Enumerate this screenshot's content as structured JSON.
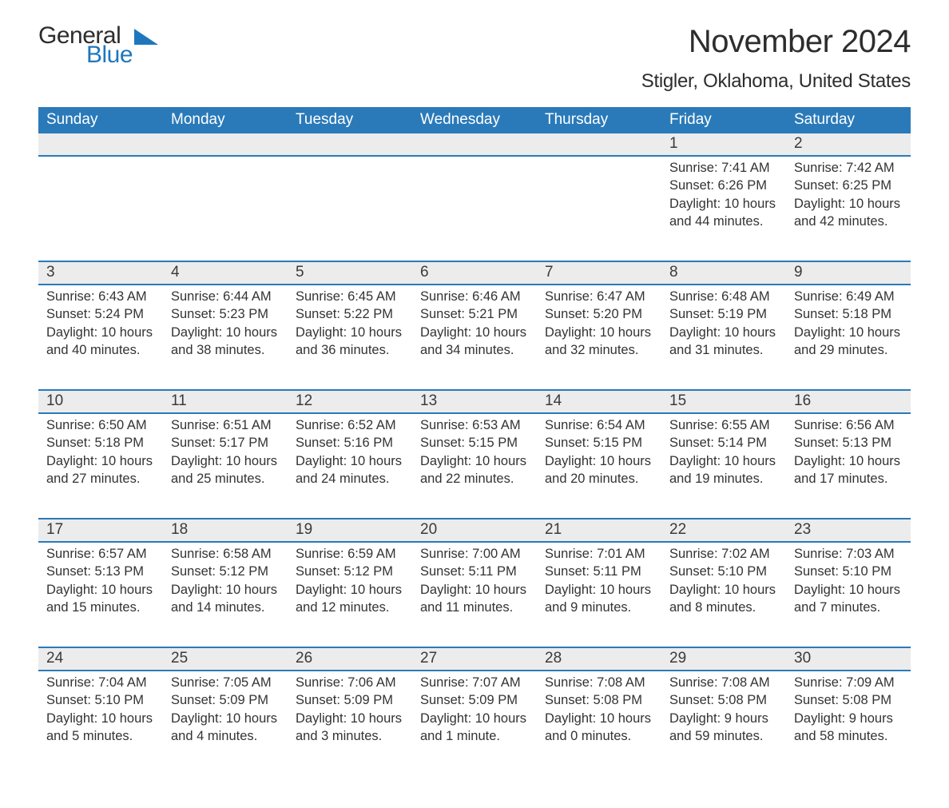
{
  "brand": {
    "word1": "General",
    "word2": "Blue",
    "triangle_color": "#1e77bd"
  },
  "title": "November 2024",
  "location": "Stigler, Oklahoma, United States",
  "colors": {
    "header_bg": "#2a7ab9",
    "header_text": "#ffffff",
    "daynum_bg": "#ececec",
    "row_border": "#2a7ab9",
    "text": "#333333",
    "logo_blue": "#1e77bd"
  },
  "day_headers": [
    "Sunday",
    "Monday",
    "Tuesday",
    "Wednesday",
    "Thursday",
    "Friday",
    "Saturday"
  ],
  "weeks": [
    {
      "days": [
        null,
        null,
        null,
        null,
        null,
        {
          "n": "1",
          "sr": "Sunrise: 7:41 AM",
          "ss": "Sunset: 6:26 PM",
          "dl": "Daylight: 10 hours and 44 minutes."
        },
        {
          "n": "2",
          "sr": "Sunrise: 7:42 AM",
          "ss": "Sunset: 6:25 PM",
          "dl": "Daylight: 10 hours and 42 minutes."
        }
      ]
    },
    {
      "days": [
        {
          "n": "3",
          "sr": "Sunrise: 6:43 AM",
          "ss": "Sunset: 5:24 PM",
          "dl": "Daylight: 10 hours and 40 minutes."
        },
        {
          "n": "4",
          "sr": "Sunrise: 6:44 AM",
          "ss": "Sunset: 5:23 PM",
          "dl": "Daylight: 10 hours and 38 minutes."
        },
        {
          "n": "5",
          "sr": "Sunrise: 6:45 AM",
          "ss": "Sunset: 5:22 PM",
          "dl": "Daylight: 10 hours and 36 minutes."
        },
        {
          "n": "6",
          "sr": "Sunrise: 6:46 AM",
          "ss": "Sunset: 5:21 PM",
          "dl": "Daylight: 10 hours and 34 minutes."
        },
        {
          "n": "7",
          "sr": "Sunrise: 6:47 AM",
          "ss": "Sunset: 5:20 PM",
          "dl": "Daylight: 10 hours and 32 minutes."
        },
        {
          "n": "8",
          "sr": "Sunrise: 6:48 AM",
          "ss": "Sunset: 5:19 PM",
          "dl": "Daylight: 10 hours and 31 minutes."
        },
        {
          "n": "9",
          "sr": "Sunrise: 6:49 AM",
          "ss": "Sunset: 5:18 PM",
          "dl": "Daylight: 10 hours and 29 minutes."
        }
      ]
    },
    {
      "days": [
        {
          "n": "10",
          "sr": "Sunrise: 6:50 AM",
          "ss": "Sunset: 5:18 PM",
          "dl": "Daylight: 10 hours and 27 minutes."
        },
        {
          "n": "11",
          "sr": "Sunrise: 6:51 AM",
          "ss": "Sunset: 5:17 PM",
          "dl": "Daylight: 10 hours and 25 minutes."
        },
        {
          "n": "12",
          "sr": "Sunrise: 6:52 AM",
          "ss": "Sunset: 5:16 PM",
          "dl": "Daylight: 10 hours and 24 minutes."
        },
        {
          "n": "13",
          "sr": "Sunrise: 6:53 AM",
          "ss": "Sunset: 5:15 PM",
          "dl": "Daylight: 10 hours and 22 minutes."
        },
        {
          "n": "14",
          "sr": "Sunrise: 6:54 AM",
          "ss": "Sunset: 5:15 PM",
          "dl": "Daylight: 10 hours and 20 minutes."
        },
        {
          "n": "15",
          "sr": "Sunrise: 6:55 AM",
          "ss": "Sunset: 5:14 PM",
          "dl": "Daylight: 10 hours and 19 minutes."
        },
        {
          "n": "16",
          "sr": "Sunrise: 6:56 AM",
          "ss": "Sunset: 5:13 PM",
          "dl": "Daylight: 10 hours and 17 minutes."
        }
      ]
    },
    {
      "days": [
        {
          "n": "17",
          "sr": "Sunrise: 6:57 AM",
          "ss": "Sunset: 5:13 PM",
          "dl": "Daylight: 10 hours and 15 minutes."
        },
        {
          "n": "18",
          "sr": "Sunrise: 6:58 AM",
          "ss": "Sunset: 5:12 PM",
          "dl": "Daylight: 10 hours and 14 minutes."
        },
        {
          "n": "19",
          "sr": "Sunrise: 6:59 AM",
          "ss": "Sunset: 5:12 PM",
          "dl": "Daylight: 10 hours and 12 minutes."
        },
        {
          "n": "20",
          "sr": "Sunrise: 7:00 AM",
          "ss": "Sunset: 5:11 PM",
          "dl": "Daylight: 10 hours and 11 minutes."
        },
        {
          "n": "21",
          "sr": "Sunrise: 7:01 AM",
          "ss": "Sunset: 5:11 PM",
          "dl": "Daylight: 10 hours and 9 minutes."
        },
        {
          "n": "22",
          "sr": "Sunrise: 7:02 AM",
          "ss": "Sunset: 5:10 PM",
          "dl": "Daylight: 10 hours and 8 minutes."
        },
        {
          "n": "23",
          "sr": "Sunrise: 7:03 AM",
          "ss": "Sunset: 5:10 PM",
          "dl": "Daylight: 10 hours and 7 minutes."
        }
      ]
    },
    {
      "days": [
        {
          "n": "24",
          "sr": "Sunrise: 7:04 AM",
          "ss": "Sunset: 5:10 PM",
          "dl": "Daylight: 10 hours and 5 minutes."
        },
        {
          "n": "25",
          "sr": "Sunrise: 7:05 AM",
          "ss": "Sunset: 5:09 PM",
          "dl": "Daylight: 10 hours and 4 minutes."
        },
        {
          "n": "26",
          "sr": "Sunrise: 7:06 AM",
          "ss": "Sunset: 5:09 PM",
          "dl": "Daylight: 10 hours and 3 minutes."
        },
        {
          "n": "27",
          "sr": "Sunrise: 7:07 AM",
          "ss": "Sunset: 5:09 PM",
          "dl": "Daylight: 10 hours and 1 minute."
        },
        {
          "n": "28",
          "sr": "Sunrise: 7:08 AM",
          "ss": "Sunset: 5:08 PM",
          "dl": "Daylight: 10 hours and 0 minutes."
        },
        {
          "n": "29",
          "sr": "Sunrise: 7:08 AM",
          "ss": "Sunset: 5:08 PM",
          "dl": "Daylight: 9 hours and 59 minutes."
        },
        {
          "n": "30",
          "sr": "Sunrise: 7:09 AM",
          "ss": "Sunset: 5:08 PM",
          "dl": "Daylight: 9 hours and 58 minutes."
        }
      ]
    }
  ]
}
